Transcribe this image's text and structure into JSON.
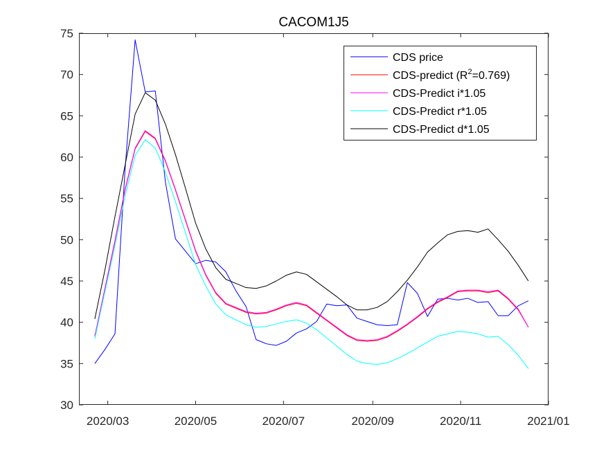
{
  "chart_data": {
    "type": "line",
    "title": "CACOM1J5",
    "xlabel": "",
    "ylabel": "",
    "x_start": "2020-02-10",
    "x_end": "2021-01-01",
    "ylim": [
      30,
      75
    ],
    "xticks": [
      {
        "date": "2020-03-01",
        "label": "2020/03"
      },
      {
        "date": "2020-05-01",
        "label": "2020/05"
      },
      {
        "date": "2020-07-01",
        "label": "2020/07"
      },
      {
        "date": "2020-09-01",
        "label": "2020/09"
      },
      {
        "date": "2020-11-01",
        "label": "2020/11"
      },
      {
        "date": "2021-01-01",
        "label": "2021/01"
      }
    ],
    "yticks": [
      30,
      35,
      40,
      45,
      50,
      55,
      60,
      65,
      70,
      75
    ],
    "grid": false,
    "legend_position": "top-right",
    "series": [
      {
        "name": "CDS price",
        "color": "#0000ff",
        "points": [
          [
            "2020-02-21",
            35.0
          ],
          [
            "2020-02-28",
            36.7
          ],
          [
            "2020-03-06",
            38.6
          ],
          [
            "2020-03-13",
            58.5
          ],
          [
            "2020-03-20",
            74.2
          ],
          [
            "2020-03-27",
            67.9
          ],
          [
            "2020-04-03",
            68.0
          ],
          [
            "2020-04-10",
            57.0
          ],
          [
            "2020-04-17",
            50.1
          ],
          [
            "2020-04-24",
            48.6
          ],
          [
            "2020-05-01",
            47.1
          ],
          [
            "2020-05-08",
            47.5
          ],
          [
            "2020-05-15",
            47.3
          ],
          [
            "2020-05-22",
            46.1
          ],
          [
            "2020-05-29",
            43.8
          ],
          [
            "2020-06-05",
            41.9
          ],
          [
            "2020-06-12",
            37.9
          ],
          [
            "2020-06-19",
            37.4
          ],
          [
            "2020-06-26",
            37.2
          ],
          [
            "2020-07-03",
            37.7
          ],
          [
            "2020-07-10",
            38.7
          ],
          [
            "2020-07-17",
            39.2
          ],
          [
            "2020-07-24",
            40.1
          ],
          [
            "2020-07-31",
            42.2
          ],
          [
            "2020-08-07",
            42.0
          ],
          [
            "2020-08-14",
            42.1
          ],
          [
            "2020-08-21",
            40.5
          ],
          [
            "2020-08-28",
            40.1
          ],
          [
            "2020-09-04",
            39.7
          ],
          [
            "2020-09-11",
            39.6
          ],
          [
            "2020-09-18",
            39.7
          ],
          [
            "2020-09-25",
            44.8
          ],
          [
            "2020-10-02",
            43.5
          ],
          [
            "2020-10-09",
            40.7
          ],
          [
            "2020-10-16",
            42.8
          ],
          [
            "2020-10-23",
            42.9
          ],
          [
            "2020-10-30",
            42.7
          ],
          [
            "2020-11-06",
            42.9
          ],
          [
            "2020-11-13",
            42.4
          ],
          [
            "2020-11-20",
            42.5
          ],
          [
            "2020-11-27",
            40.8
          ],
          [
            "2020-12-04",
            40.8
          ],
          [
            "2020-12-11",
            42.0
          ],
          [
            "2020-12-18",
            42.6
          ]
        ]
      },
      {
        "name": "CDS-predict (R2=0.769)",
        "color": "#ff0000",
        "points": [
          [
            "2020-02-21",
            38.3
          ],
          [
            "2020-02-28",
            44.0
          ],
          [
            "2020-03-06",
            49.8
          ],
          [
            "2020-03-13",
            56.0
          ],
          [
            "2020-03-20",
            61.0
          ],
          [
            "2020-03-27",
            63.1
          ],
          [
            "2020-04-03",
            62.2
          ],
          [
            "2020-04-10",
            59.5
          ],
          [
            "2020-04-17",
            56.0
          ],
          [
            "2020-04-24",
            52.3
          ],
          [
            "2020-05-01",
            48.6
          ],
          [
            "2020-05-08",
            45.7
          ],
          [
            "2020-05-15",
            43.5
          ],
          [
            "2020-05-22",
            42.2
          ],
          [
            "2020-05-29",
            41.7
          ],
          [
            "2020-06-05",
            41.2
          ],
          [
            "2020-06-12",
            41.0
          ],
          [
            "2020-06-19",
            41.1
          ],
          [
            "2020-06-26",
            41.5
          ],
          [
            "2020-07-03",
            42.0
          ],
          [
            "2020-07-10",
            42.3
          ],
          [
            "2020-07-17",
            42.0
          ],
          [
            "2020-07-24",
            41.1
          ],
          [
            "2020-07-31",
            40.2
          ],
          [
            "2020-08-07",
            39.3
          ],
          [
            "2020-08-14",
            38.4
          ],
          [
            "2020-08-21",
            37.8
          ],
          [
            "2020-08-28",
            37.7
          ],
          [
            "2020-09-04",
            37.8
          ],
          [
            "2020-09-11",
            38.2
          ],
          [
            "2020-09-18",
            38.9
          ],
          [
            "2020-09-25",
            39.7
          ],
          [
            "2020-10-02",
            40.6
          ],
          [
            "2020-10-09",
            41.6
          ],
          [
            "2020-10-16",
            42.4
          ],
          [
            "2020-10-23",
            43.0
          ],
          [
            "2020-10-30",
            43.7
          ],
          [
            "2020-11-06",
            43.8
          ],
          [
            "2020-11-13",
            43.8
          ],
          [
            "2020-11-20",
            43.6
          ],
          [
            "2020-11-27",
            43.8
          ],
          [
            "2020-12-04",
            42.8
          ],
          [
            "2020-12-11",
            41.5
          ],
          [
            "2020-12-18",
            39.4
          ]
        ]
      },
      {
        "name": "CDS-Predict i*1.05",
        "color": "#ff00ff",
        "points": [
          [
            "2020-02-21",
            38.3
          ],
          [
            "2020-02-28",
            44.1
          ],
          [
            "2020-03-06",
            49.9
          ],
          [
            "2020-03-13",
            56.1
          ],
          [
            "2020-03-20",
            61.1
          ],
          [
            "2020-03-27",
            63.2
          ],
          [
            "2020-04-03",
            62.3
          ],
          [
            "2020-04-10",
            59.6
          ],
          [
            "2020-04-17",
            56.1
          ],
          [
            "2020-04-24",
            52.4
          ],
          [
            "2020-05-01",
            48.7
          ],
          [
            "2020-05-08",
            45.8
          ],
          [
            "2020-05-15",
            43.6
          ],
          [
            "2020-05-22",
            42.3
          ],
          [
            "2020-05-29",
            41.8
          ],
          [
            "2020-06-05",
            41.3
          ],
          [
            "2020-06-12",
            41.1
          ],
          [
            "2020-06-19",
            41.2
          ],
          [
            "2020-06-26",
            41.6
          ],
          [
            "2020-07-03",
            42.1
          ],
          [
            "2020-07-10",
            42.4
          ],
          [
            "2020-07-17",
            42.1
          ],
          [
            "2020-07-24",
            41.2
          ],
          [
            "2020-07-31",
            40.3
          ],
          [
            "2020-08-07",
            39.4
          ],
          [
            "2020-08-14",
            38.5
          ],
          [
            "2020-08-21",
            37.9
          ],
          [
            "2020-08-28",
            37.8
          ],
          [
            "2020-09-04",
            37.9
          ],
          [
            "2020-09-11",
            38.3
          ],
          [
            "2020-09-18",
            39.0
          ],
          [
            "2020-09-25",
            39.8
          ],
          [
            "2020-10-02",
            40.7
          ],
          [
            "2020-10-09",
            41.7
          ],
          [
            "2020-10-16",
            42.5
          ],
          [
            "2020-10-23",
            43.1
          ],
          [
            "2020-10-30",
            43.8
          ],
          [
            "2020-11-06",
            43.9
          ],
          [
            "2020-11-13",
            43.9
          ],
          [
            "2020-11-20",
            43.7
          ],
          [
            "2020-11-27",
            43.9
          ],
          [
            "2020-12-04",
            42.9
          ],
          [
            "2020-12-11",
            41.6
          ],
          [
            "2020-12-18",
            39.4
          ]
        ]
      },
      {
        "name": "CDS-Predict r*1.05",
        "color": "#00ffff",
        "points": [
          [
            "2020-02-21",
            38.0
          ],
          [
            "2020-02-28",
            43.7
          ],
          [
            "2020-03-06",
            49.3
          ],
          [
            "2020-03-13",
            55.3
          ],
          [
            "2020-03-20",
            60.2
          ],
          [
            "2020-03-27",
            62.1
          ],
          [
            "2020-04-03",
            61.1
          ],
          [
            "2020-04-10",
            58.2
          ],
          [
            "2020-04-17",
            54.6
          ],
          [
            "2020-04-24",
            50.8
          ],
          [
            "2020-05-01",
            47.0
          ],
          [
            "2020-05-08",
            44.4
          ],
          [
            "2020-05-15",
            42.2
          ],
          [
            "2020-05-22",
            40.9
          ],
          [
            "2020-05-29",
            40.3
          ],
          [
            "2020-06-05",
            39.7
          ],
          [
            "2020-06-12",
            39.4
          ],
          [
            "2020-06-19",
            39.5
          ],
          [
            "2020-06-26",
            39.8
          ],
          [
            "2020-07-03",
            40.1
          ],
          [
            "2020-07-10",
            40.3
          ],
          [
            "2020-07-17",
            39.9
          ],
          [
            "2020-07-24",
            39.1
          ],
          [
            "2020-07-31",
            38.1
          ],
          [
            "2020-08-07",
            37.1
          ],
          [
            "2020-08-14",
            36.1
          ],
          [
            "2020-08-21",
            35.3
          ],
          [
            "2020-08-28",
            35.0
          ],
          [
            "2020-09-04",
            34.9
          ],
          [
            "2020-09-11",
            35.1
          ],
          [
            "2020-09-18",
            35.6
          ],
          [
            "2020-09-25",
            36.2
          ],
          [
            "2020-10-02",
            36.9
          ],
          [
            "2020-10-09",
            37.6
          ],
          [
            "2020-10-16",
            38.3
          ],
          [
            "2020-10-23",
            38.6
          ],
          [
            "2020-10-30",
            38.9
          ],
          [
            "2020-11-06",
            38.8
          ],
          [
            "2020-11-13",
            38.6
          ],
          [
            "2020-11-20",
            38.2
          ],
          [
            "2020-11-27",
            38.3
          ],
          [
            "2020-12-04",
            37.3
          ],
          [
            "2020-12-11",
            36.0
          ],
          [
            "2020-12-18",
            34.4
          ]
        ]
      },
      {
        "name": "CDS-Predict d*1.05",
        "color": "#000000",
        "points": [
          [
            "2020-02-21",
            40.4
          ],
          [
            "2020-02-28",
            46.3
          ],
          [
            "2020-03-06",
            52.8
          ],
          [
            "2020-03-13",
            59.0
          ],
          [
            "2020-03-20",
            65.2
          ],
          [
            "2020-03-27",
            67.8
          ],
          [
            "2020-04-03",
            66.9
          ],
          [
            "2020-04-10",
            64.0
          ],
          [
            "2020-04-17",
            60.3
          ],
          [
            "2020-04-24",
            56.2
          ],
          [
            "2020-05-01",
            52.0
          ],
          [
            "2020-05-08",
            48.9
          ],
          [
            "2020-05-15",
            46.6
          ],
          [
            "2020-05-22",
            45.2
          ],
          [
            "2020-05-29",
            44.7
          ],
          [
            "2020-06-05",
            44.2
          ],
          [
            "2020-06-12",
            44.1
          ],
          [
            "2020-06-19",
            44.4
          ],
          [
            "2020-06-26",
            45.0
          ],
          [
            "2020-07-03",
            45.7
          ],
          [
            "2020-07-10",
            46.1
          ],
          [
            "2020-07-17",
            45.8
          ],
          [
            "2020-07-24",
            44.9
          ],
          [
            "2020-07-31",
            44.0
          ],
          [
            "2020-08-07",
            43.1
          ],
          [
            "2020-08-14",
            42.1
          ],
          [
            "2020-08-21",
            41.5
          ],
          [
            "2020-08-28",
            41.5
          ],
          [
            "2020-09-04",
            41.8
          ],
          [
            "2020-09-11",
            42.5
          ],
          [
            "2020-09-18",
            43.7
          ],
          [
            "2020-09-25",
            45.1
          ],
          [
            "2020-10-02",
            46.7
          ],
          [
            "2020-10-09",
            48.5
          ],
          [
            "2020-10-16",
            49.6
          ],
          [
            "2020-10-23",
            50.6
          ],
          [
            "2020-10-30",
            51.0
          ],
          [
            "2020-11-06",
            51.1
          ],
          [
            "2020-11-13",
            50.9
          ],
          [
            "2020-11-20",
            51.3
          ],
          [
            "2020-11-27",
            50.0
          ],
          [
            "2020-12-04",
            48.6
          ],
          [
            "2020-12-11",
            46.9
          ],
          [
            "2020-12-18",
            45.0
          ]
        ]
      }
    ]
  }
}
